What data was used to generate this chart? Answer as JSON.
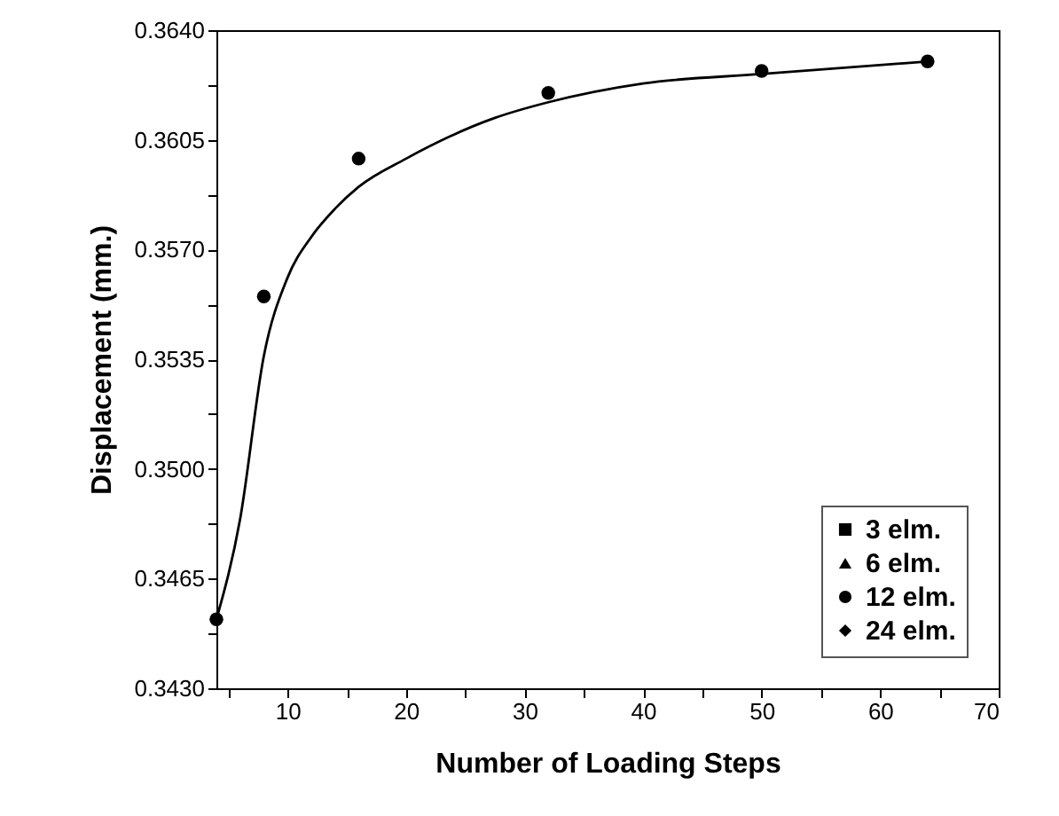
{
  "chart_data": {
    "type": "scatter",
    "xlabel": "Number of Loading Steps",
    "ylabel": "Displacement (mm.)",
    "xlim": [
      4,
      70
    ],
    "xticks": [
      {
        "value": 5,
        "label": null
      },
      10,
      {
        "value": 15,
        "label": null
      },
      20,
      {
        "value": 25,
        "label": null
      },
      30,
      {
        "value": 35,
        "label": null
      },
      40,
      {
        "value": 45,
        "label": null
      },
      50,
      {
        "value": 55,
        "label": null
      },
      60,
      {
        "value": 65,
        "label": null
      },
      70
    ],
    "ylim": [
      0.343,
      0.364
    ],
    "yticks": [
      {
        "value": 0.343,
        "label": "0.3430"
      },
      {
        "value": 0.34475,
        "label": null
      },
      {
        "value": 0.3465,
        "label": "0.3465"
      },
      {
        "value": 0.34825,
        "label": null
      },
      {
        "value": 0.35,
        "label": "0.3500"
      },
      {
        "value": 0.35175,
        "label": null
      },
      {
        "value": 0.3535,
        "label": "0.3535"
      },
      {
        "value": 0.35525,
        "label": null
      },
      {
        "value": 0.357,
        "label": "0.3570"
      },
      {
        "value": 0.35875,
        "label": null
      },
      {
        "value": 0.3605,
        "label": "0.3605"
      },
      {
        "value": 0.36225,
        "label": null
      },
      {
        "value": 0.364,
        "label": "0.3640"
      }
    ],
    "x": [
      4,
      8,
      16,
      32,
      50,
      64
    ],
    "legend": "bottom right",
    "grid": false,
    "series": [
      {
        "name": "3   elm.",
        "color": "#000000",
        "marker": "square",
        "values": [
          null,
          null,
          null,
          null,
          null,
          null
        ]
      },
      {
        "name": "6   elm.",
        "color": "#000000",
        "marker": "triangle",
        "values": [
          null,
          null,
          null,
          null,
          null,
          null
        ]
      },
      {
        "name": "12 elm.",
        "color": "#000000",
        "marker": "circle",
        "values": [
          0.3452,
          0.3555,
          0.3599,
          0.362,
          0.3627,
          0.363
        ]
      },
      {
        "name": "24 elm.",
        "color": "#000000",
        "marker": "diamond",
        "values": [
          null,
          null,
          null,
          null,
          null,
          null
        ]
      },
      {
        "type": "line",
        "color": "#000000",
        "x": [
          4,
          6,
          8,
          10,
          12,
          14,
          16,
          20,
          27.5,
          32,
          40,
          50,
          64
        ],
        "values": [
          0.3452,
          0.3484,
          0.3536,
          0.3561,
          0.3574,
          0.3583,
          0.359,
          0.3599,
          0.3612,
          0.3617,
          0.3623,
          0.3626,
          0.363
        ]
      }
    ]
  }
}
